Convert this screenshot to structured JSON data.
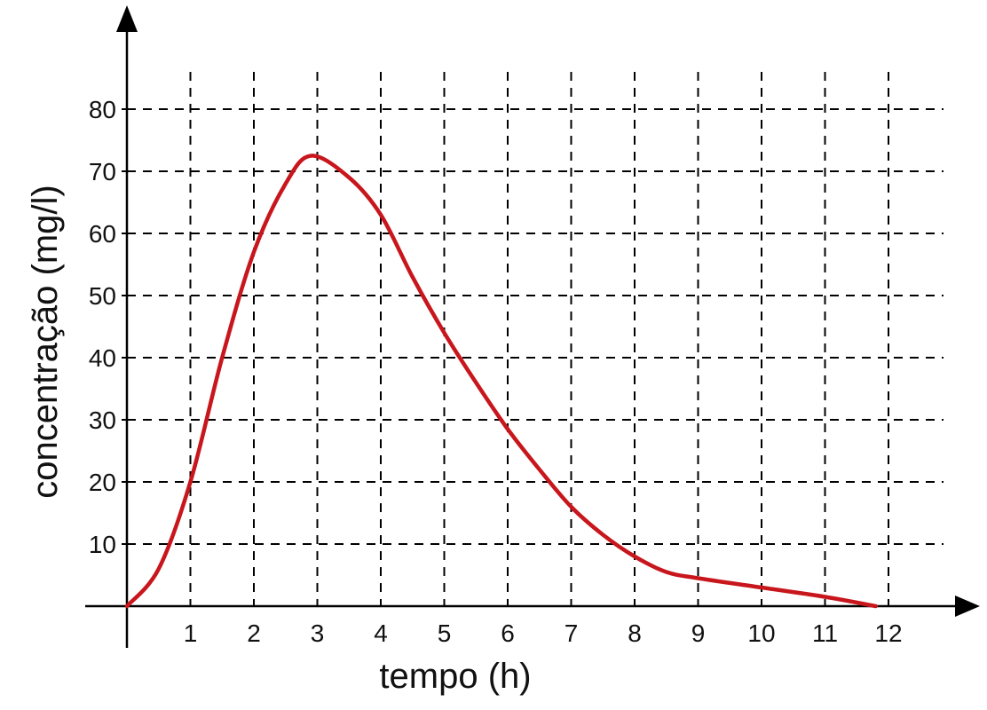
{
  "chart_data": {
    "type": "line",
    "title": "",
    "xlabel": "tempo (h)",
    "ylabel": "concentração (mg/l)",
    "xlim": [
      0,
      12
    ],
    "ylim": [
      0,
      80
    ],
    "x_ticks": [
      "1",
      "2",
      "3",
      "4",
      "5",
      "6",
      "7",
      "8",
      "9",
      "10",
      "11",
      "12"
    ],
    "y_ticks": [
      "10",
      "20",
      "30",
      "40",
      "50",
      "60",
      "70",
      "80"
    ],
    "grid": true,
    "grid_style": "dashed",
    "series": [
      {
        "color": "#c8161d",
        "x": [
          0,
          0.5,
          1,
          1.5,
          2,
          2.5,
          2.9,
          3.5,
          4,
          4.5,
          5,
          5.5,
          6,
          6.5,
          7,
          7.5,
          8,
          8.5,
          9,
          10,
          11,
          11.8
        ],
        "y": [
          0,
          6,
          20,
          40,
          57,
          68,
          72.5,
          69,
          63,
          53,
          44,
          36,
          28.5,
          22,
          16,
          11.5,
          8,
          5.5,
          4.5,
          3,
          1.5,
          0
        ]
      }
    ]
  }
}
